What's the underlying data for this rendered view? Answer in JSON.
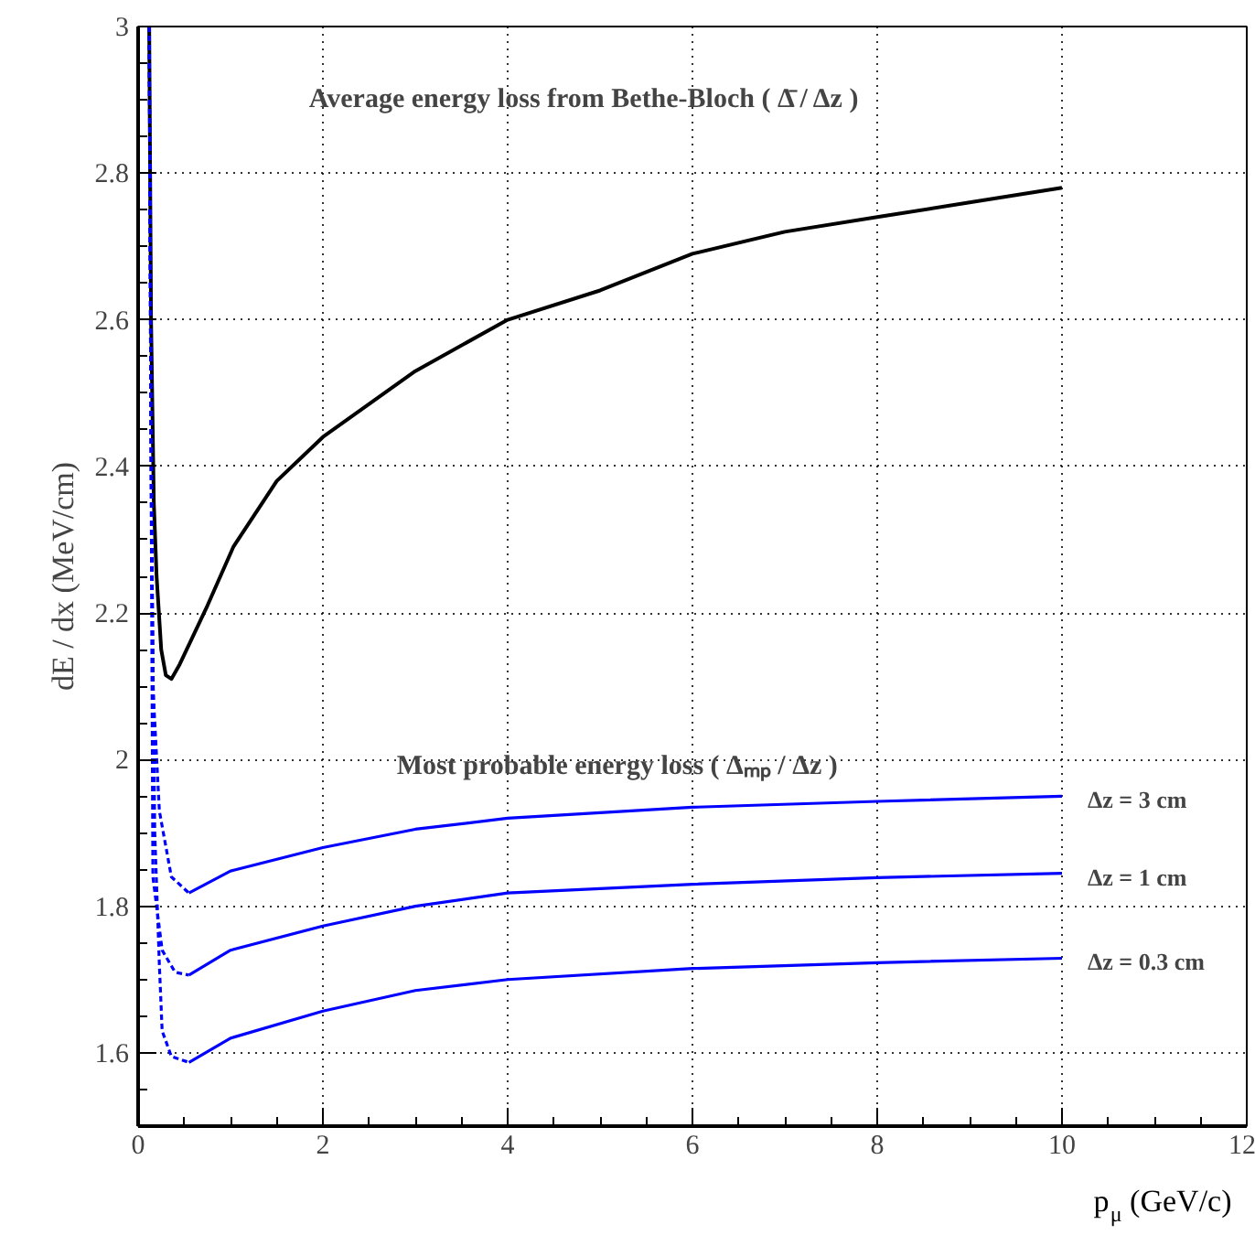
{
  "chart_data": {
    "type": "line",
    "xlabel": "p$_{μ}$ (GeV/c)",
    "ylabel": "dE / dx (MeV/cm)",
    "xlim": [
      0,
      12
    ],
    "ylim": [
      1.5,
      3
    ],
    "xticks": [
      0,
      2,
      4,
      6,
      8,
      10,
      12
    ],
    "yticks": [
      1.6,
      1.8,
      2,
      2.2,
      2.4,
      2.6,
      2.8,
      3
    ],
    "grid": true,
    "legend": false,
    "annotations": [
      "Average energy loss from Bethe-Bloch ( Δ̄ / Δz )",
      "Most probable energy loss   ( Δₘₚ / Δz )"
    ],
    "series": [
      {
        "color": "#000000",
        "line_style": "solid",
        "x": [
          0.12,
          0.14,
          0.17,
          0.2,
          0.25,
          0.3,
          0.36,
          0.45,
          0.6,
          0.75,
          1.03,
          1.5,
          2,
          3,
          4,
          5,
          6,
          7,
          8,
          9,
          10
        ],
        "values": [
          3,
          2.6,
          2.35,
          2.25,
          2.15,
          2.115,
          2.11,
          2.13,
          2.17,
          2.21,
          2.29,
          2.38,
          2.44,
          2.53,
          2.6,
          2.64,
          2.69,
          2.72,
          2.74,
          2.76,
          2.78
        ]
      },
      {
        "color": "#0000ff",
        "line_style": "dotted",
        "x": [
          0.12,
          0.14,
          0.16,
          0.23,
          0.36,
          0.55
        ],
        "values": [
          3,
          2.5,
          2.1,
          1.93,
          1.84,
          1.818
        ]
      },
      {
        "name": "Δz = 3 cm",
        "color": "#0000ff",
        "line_style": "solid",
        "x": [
          0.55,
          1,
          2,
          3,
          4,
          6,
          8,
          10
        ],
        "values": [
          1.818,
          1.848,
          1.88,
          1.905,
          1.92,
          1.935,
          1.943,
          1.95
        ]
      },
      {
        "color": "#0000ff",
        "line_style": "dotted",
        "x": [
          0.12,
          0.14,
          0.16,
          0.26,
          0.4,
          0.55
        ],
        "values": [
          3,
          2.4,
          1.84,
          1.74,
          1.71,
          1.706
        ]
      },
      {
        "name": "Δz = 1 cm",
        "color": "#0000ff",
        "line_style": "solid",
        "x": [
          0.55,
          1,
          2,
          3,
          4,
          6,
          8,
          10
        ],
        "values": [
          1.706,
          1.74,
          1.773,
          1.8,
          1.818,
          1.83,
          1.839,
          1.845
        ]
      },
      {
        "color": "#0000ff",
        "line_style": "dotted",
        "x": [
          0.12,
          0.14,
          0.18,
          0.23,
          0.26,
          0.36,
          0.55
        ],
        "values": [
          3,
          2.4,
          1.9,
          1.72,
          1.63,
          1.595,
          1.587
        ]
      },
      {
        "name": "Δz = 0.3 cm",
        "color": "#0000ff",
        "line_style": "solid",
        "x": [
          0.55,
          1,
          2,
          3,
          4,
          6,
          8,
          10
        ],
        "values": [
          1.587,
          1.62,
          1.657,
          1.685,
          1.7,
          1.715,
          1.723,
          1.729
        ]
      }
    ]
  }
}
